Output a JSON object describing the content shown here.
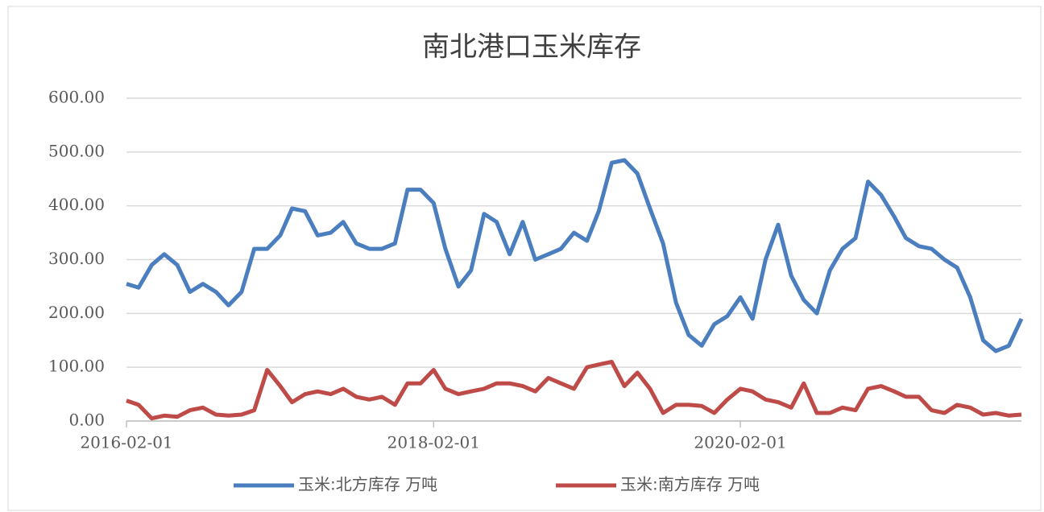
{
  "chart_data": {
    "type": "line",
    "title": "南北港口玉米库存",
    "x": [
      "2016-02-01",
      "2016-03-01",
      "2016-04-01",
      "2016-05-01",
      "2016-06-01",
      "2016-07-01",
      "2016-08-01",
      "2016-09-01",
      "2016-10-01",
      "2016-11-01",
      "2016-12-01",
      "2017-01-01",
      "2017-02-01",
      "2017-03-01",
      "2017-04-01",
      "2017-05-01",
      "2017-06-01",
      "2017-07-01",
      "2017-08-01",
      "2017-09-01",
      "2017-10-01",
      "2017-11-01",
      "2017-12-01",
      "2018-01-01",
      "2018-02-01",
      "2018-03-01",
      "2018-04-01",
      "2018-05-01",
      "2018-06-01",
      "2018-07-01",
      "2018-08-01",
      "2018-09-01",
      "2018-10-01",
      "2018-11-01",
      "2018-12-01",
      "2019-01-01",
      "2019-02-01",
      "2019-03-01",
      "2019-04-01",
      "2019-05-01",
      "2019-06-01",
      "2019-07-01",
      "2019-08-01",
      "2019-09-01",
      "2019-10-01",
      "2019-11-01",
      "2019-12-01",
      "2020-01-01",
      "2020-02-01",
      "2020-03-01",
      "2020-04-01",
      "2020-05-01",
      "2020-06-01",
      "2020-07-01",
      "2020-08-01",
      "2020-09-01",
      "2020-10-01",
      "2020-11-01",
      "2020-12-01",
      "2021-01-01",
      "2021-02-01",
      "2021-03-01",
      "2021-04-01",
      "2021-05-01",
      "2021-06-01",
      "2021-07-01",
      "2021-08-01",
      "2021-09-01",
      "2021-10-01",
      "2021-11-01",
      "2021-12-01"
    ],
    "series": [
      {
        "name": "玉米:北方库存 万吨",
        "color": "#4a7ebf",
        "values": [
          255,
          248,
          290,
          310,
          290,
          240,
          255,
          240,
          215,
          240,
          320,
          320,
          345,
          395,
          390,
          345,
          350,
          370,
          330,
          320,
          320,
          330,
          430,
          430,
          405,
          320,
          250,
          280,
          385,
          370,
          310,
          370,
          300,
          310,
          320,
          350,
          335,
          390,
          480,
          485,
          460,
          395,
          330,
          220,
          160,
          140,
          180,
          195,
          230,
          190,
          300,
          365,
          270,
          225,
          200,
          280,
          320,
          340,
          445,
          420,
          380,
          340,
          325,
          320,
          300,
          285,
          230,
          150,
          130,
          140,
          190
        ]
      },
      {
        "name": "玉米:南方库存 万吨",
        "color": "#be4b48",
        "values": [
          38,
          30,
          5,
          10,
          8,
          20,
          25,
          12,
          10,
          12,
          20,
          95,
          65,
          35,
          50,
          55,
          50,
          60,
          45,
          40,
          45,
          30,
          70,
          70,
          95,
          60,
          50,
          55,
          60,
          70,
          70,
          65,
          55,
          80,
          70,
          60,
          100,
          105,
          110,
          65,
          90,
          60,
          15,
          30,
          30,
          28,
          15,
          40,
          60,
          55,
          40,
          35,
          25,
          70,
          15,
          15,
          25,
          20,
          60,
          65,
          55,
          45,
          45,
          20,
          15,
          30,
          25,
          12,
          15,
          10,
          12
        ]
      }
    ],
    "xlim": [
      "2016-02-01",
      "2021-12-01"
    ],
    "xticks": [
      "2016-02-01",
      "2018-02-01",
      "2020-02-01"
    ],
    "ylim": [
      0,
      600
    ],
    "yticks": [
      {
        "value": 0,
        "label": "0.00"
      },
      {
        "value": 100,
        "label": "100.00"
      },
      {
        "value": 200,
        "label": "200.00"
      },
      {
        "value": 300,
        "label": "300.00"
      },
      {
        "value": 400,
        "label": "400.00"
      },
      {
        "value": 500,
        "label": "500.00"
      },
      {
        "value": 600,
        "label": "600.00"
      }
    ],
    "grid": true,
    "legend": "bottom"
  }
}
